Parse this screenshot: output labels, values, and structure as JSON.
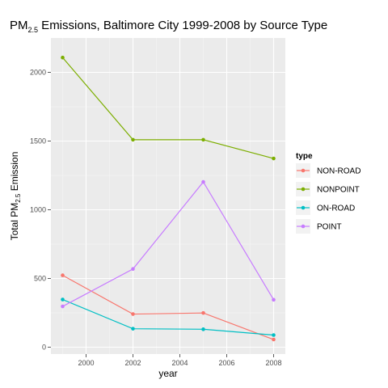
{
  "chart_data": {
    "type": "line",
    "title": {
      "main": "PM",
      "subscript": "2.5",
      "rest": " Emissions, Baltimore City 1999-2008 by Source Type"
    },
    "xlabel": "year",
    "ylabel": {
      "main": "Total PM",
      "subscript": "2.5",
      "rest": " Emission"
    },
    "xlim": [
      1998.5,
      2008.5
    ],
    "ylim": [
      -50,
      2250
    ],
    "x_ticks": [
      2000,
      2002,
      2004,
      2006,
      2008
    ],
    "x_tick_labels": [
      "2000",
      "2002",
      "2004",
      "2006",
      "2008"
    ],
    "y_ticks": [
      0,
      500,
      1000,
      1500,
      2000
    ],
    "y_tick_labels": [
      "0",
      "500",
      "1000",
      "1500",
      "2000"
    ],
    "x": [
      1999,
      2002,
      2005,
      2008
    ],
    "grid": true,
    "legend": {
      "title": "type",
      "placement": "right"
    },
    "series": [
      {
        "name": "NON-ROAD",
        "color": "#F8766D",
        "values": [
          522.94,
          240.85,
          248.93,
          55.82
        ]
      },
      {
        "name": "NONPOINT",
        "color": "#7CAE00",
        "values": [
          2107.63,
          1509.5,
          1509.5,
          1373.21
        ]
      },
      {
        "name": "ON-ROAD",
        "color": "#00BFC4",
        "values": [
          346.82,
          134.31,
          130.43,
          88.28
        ]
      },
      {
        "name": "POINT",
        "color": "#C77CFF",
        "values": [
          296.8,
          569.26,
          1202.49,
          344.98
        ]
      }
    ]
  },
  "colors": {
    "panel_background": "#EBEBEB",
    "major_grid": "#FFFFFF",
    "minor_grid": "#F5F5F5",
    "legend_key_background": "#F2F2F2"
  }
}
